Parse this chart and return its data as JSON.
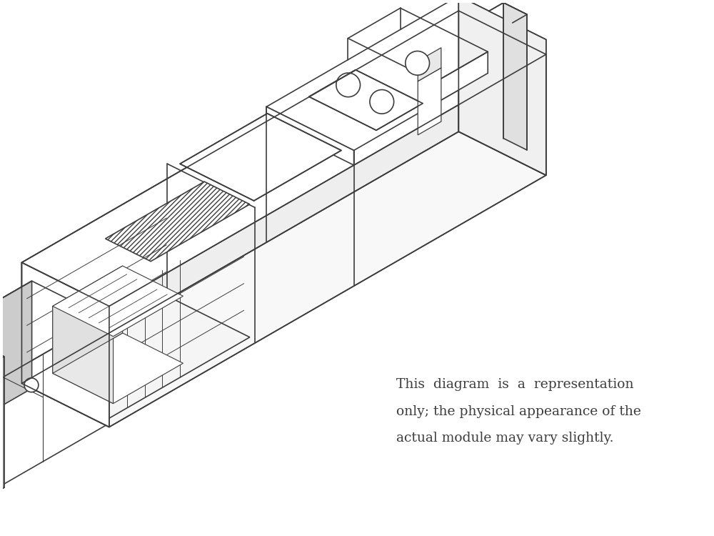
{
  "background_color": "#ffffff",
  "caption_line1": "This  diagram  is  a  representation",
  "caption_line2": "only; the physical appearance of the",
  "caption_line3": "actual module may vary slightly.",
  "caption_fontsize": 13.5,
  "caption_color": "#3d3d3d",
  "line_color": "#3d3d3d",
  "gray_fill": "#888888",
  "dark_gray": "#666666",
  "light_gray": "#cccccc",
  "fig_width": 10.0,
  "fig_height": 7.5
}
